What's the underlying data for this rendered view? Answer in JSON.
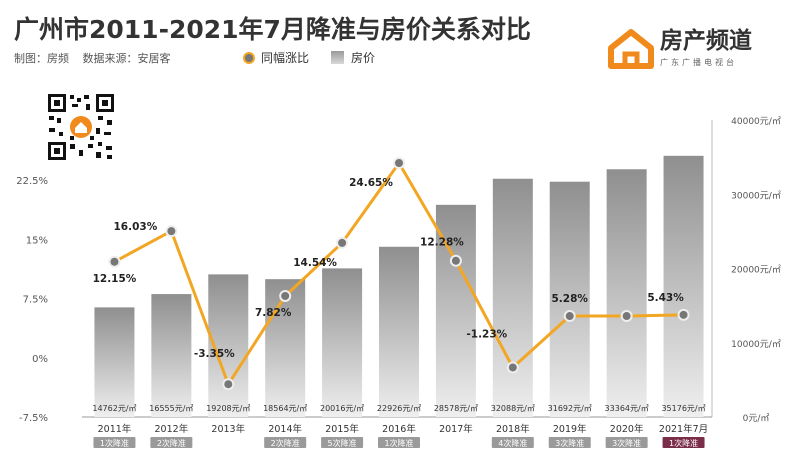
{
  "header": {
    "title": "广州市2011-2021年7月降准与房价关系对比",
    "credit": "制图：房频",
    "source": "数据来源：安居客"
  },
  "legend": {
    "line_label": "同幅涨比",
    "bar_label": "房价"
  },
  "brand": {
    "name": "房产频道",
    "sub": "广东广播电视台",
    "color": "#f08a1c"
  },
  "chart_data": {
    "type": "bar+line",
    "categories": [
      "2011年",
      "2012年",
      "2013年",
      "2014年",
      "2015年",
      "2016年",
      "2017年",
      "2018年",
      "2019年",
      "2020年",
      "2021年7月"
    ],
    "badges": [
      "1次降准",
      "2次降准",
      "",
      "2次降准",
      "5次降准",
      "1次降准",
      "",
      "4次降准",
      "3次降准",
      "3次降准",
      "1次降准"
    ],
    "bars": {
      "name": "房价",
      "values": [
        14762,
        16555,
        19208,
        18564,
        20016,
        22926,
        28578,
        32088,
        31692,
        33364,
        35176
      ],
      "value_labels": [
        "14762元/㎡",
        "16555元/㎡",
        "19208元/㎡",
        "18564元/㎡",
        "20016元/㎡",
        "22926元/㎡",
        "28578元/㎡",
        "32088元/㎡",
        "31692元/㎡",
        "33364元/㎡",
        "35176元/㎡"
      ],
      "axis_range": [
        0,
        40000
      ],
      "axis_ticks": [
        "0元/㎡",
        "10000元/㎡",
        "20000元/㎡",
        "30000元/㎡",
        "40000元/㎡"
      ]
    },
    "line": {
      "name": "同幅涨比",
      "values": [
        12.15,
        16.03,
        -3.35,
        7.82,
        14.54,
        24.65,
        12.28,
        -1.23,
        5.28,
        5.28,
        5.43
      ],
      "labels": [
        "12.15%",
        "16.03%",
        "-3.35%",
        "7.82%",
        "14.54%",
        "24.65%",
        "12.28%",
        "-1.23%",
        "5.28%",
        "",
        "5.43%"
      ],
      "axis_range": [
        -7.5,
        22.5
      ],
      "axis_ticks": [
        "-7.5%",
        "0%",
        "7.5%",
        "15%",
        "22.5%"
      ]
    },
    "colors": {
      "line": "#f2a623",
      "marker_fill": "#777777",
      "bar_top": "#8f8f8f",
      "bar_bottom": "#efefef",
      "badge": "#9a9a9a",
      "badge_highlight": "#7a2e4a"
    }
  }
}
